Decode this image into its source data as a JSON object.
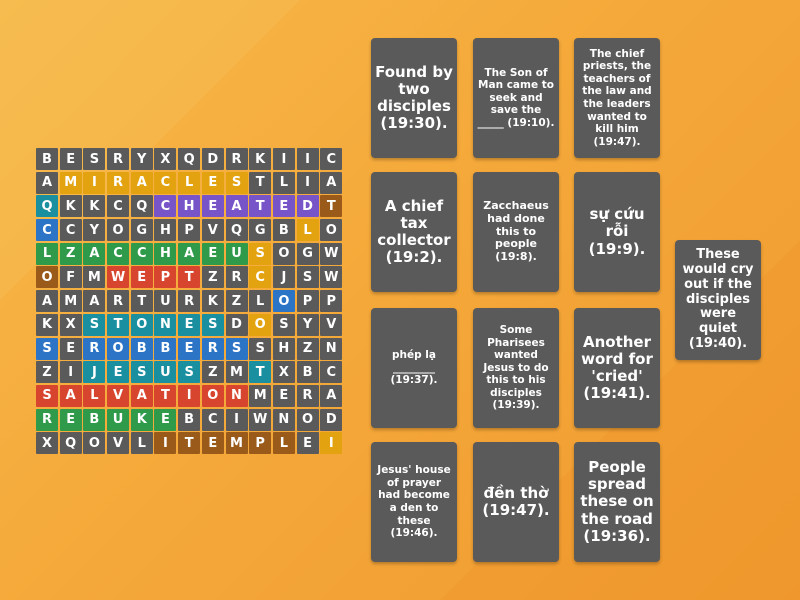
{
  "colors": {
    "background": "#f5a93a",
    "tile": "#5a5a5a",
    "purple": "#7755c8",
    "yellow": "#e3a310",
    "green": "#2e9a4a",
    "red": "#d8452f",
    "brown": "#9a5a1a",
    "teal": "#1a8fa0",
    "blue": "#2b74c6"
  },
  "grid": [
    "BESRYXQDRKIIC",
    "AMIRACLESTLIA",
    "QKKCQCHEATEDT",
    "CCYOGHPVQGBLO",
    "LZACCHAEUSOGW",
    "OFMWEPTZRCJSW",
    "AMARTURKZLOPP",
    "KXSTONESDOSYV",
    "SEROBBERSSHZN",
    "ZIJESUSZMTXBC",
    "SALVATIONMERA",
    "REBUKEBCIWNOD",
    "XQOVLITEMPLEI"
  ],
  "highlights": [
    {
      "word": "MIRACLES",
      "row": 1,
      "cols": [
        1,
        8
      ],
      "color": "yellow"
    },
    {
      "word": "CHEATED",
      "row": 2,
      "cols": [
        5,
        11
      ],
      "color": "purple"
    },
    {
      "word": "T",
      "row": 2,
      "cols": [
        12,
        12
      ],
      "color": "brown"
    },
    {
      "word": "ZACCHAEUS",
      "row": 4,
      "cols": [
        1,
        9
      ],
      "color": "green"
    },
    {
      "word": "WEPT",
      "row": 5,
      "cols": [
        3,
        6
      ],
      "color": "red"
    },
    {
      "word": "STONES",
      "row": 7,
      "cols": [
        2,
        7
      ],
      "color": "teal"
    },
    {
      "word": "ROBBERS",
      "row": 8,
      "cols": [
        2,
        8
      ],
      "color": "blue"
    },
    {
      "word": "JESUS",
      "row": 9,
      "cols": [
        2,
        6
      ],
      "color": "teal"
    },
    {
      "word": "SALVATION",
      "row": 10,
      "cols": [
        0,
        8
      ],
      "color": "red"
    },
    {
      "word": "REBUKE",
      "row": 11,
      "cols": [
        0,
        5
      ],
      "color": "green"
    },
    {
      "word": "TEMPLE",
      "row": 12,
      "cols": [
        5,
        10
      ],
      "color": "brown"
    }
  ],
  "cells_extra": [
    {
      "row": 2,
      "col": 0,
      "color": "teal"
    },
    {
      "row": 3,
      "col": 0,
      "color": "blue"
    },
    {
      "row": 4,
      "col": 0,
      "color": "green"
    },
    {
      "row": 5,
      "col": 0,
      "color": "brown"
    },
    {
      "row": 8,
      "col": 0,
      "color": "blue"
    },
    {
      "row": 3,
      "col": 11,
      "color": "yellow"
    },
    {
      "row": 4,
      "col": 9,
      "color": "yellow"
    },
    {
      "row": 5,
      "col": 9,
      "color": "yellow"
    },
    {
      "row": 6,
      "col": 10,
      "color": "blue"
    },
    {
      "row": 9,
      "col": 9,
      "color": "teal"
    },
    {
      "row": 7,
      "col": 9,
      "color": "yellow"
    },
    {
      "row": 12,
      "col": 12,
      "color": "yellow"
    }
  ],
  "clue_cards": [
    {
      "name": "card-found-by-two-disciples",
      "text": "Found by two disciples (19:30).",
      "size": "lg"
    },
    {
      "name": "card-son-of-man-came",
      "text": "The Son of Man came to seek and save the _____ (19:10).",
      "size": "xs"
    },
    {
      "name": "card-chief-priests",
      "text": "The chief priests, the teachers of the law and the leaders wanted to kill him (19:47).",
      "size": "xs"
    },
    {
      "name": "card-chief-tax-collector",
      "text": "A chief tax collector (19:2).",
      "size": "lg"
    },
    {
      "name": "card-zacchaeus-had-done",
      "text": "Zacchaeus had done this to people (19:8).",
      "size": "sm"
    },
    {
      "name": "card-su-cuu-roi",
      "text": "sự cứu rỗi (19:9).",
      "size": "lg"
    },
    {
      "name": "card-phep-la",
      "text": "phép lạ ________ (19:37).",
      "size": "xs"
    },
    {
      "name": "card-some-pharisees",
      "text": "Some Pharisees wanted Jesus to do this to his disciples (19:39).",
      "size": "xs"
    },
    {
      "name": "card-another-word-cried",
      "text": "Another word for 'cried' (19:41).",
      "size": "lg"
    },
    {
      "name": "card-jesus-house-of-prayer",
      "text": "Jesus' house of prayer had become a den to these (19:46).",
      "size": "xs"
    },
    {
      "name": "card-den-tho",
      "text": "đền thờ (19:47).",
      "size": "lg"
    },
    {
      "name": "card-people-spread",
      "text": "People spread these on the road (19:36).",
      "size": "lg"
    },
    {
      "name": "card-would-cry-out",
      "text": "These would cry out if the disciples were quiet (19:40).",
      "size": "md"
    }
  ]
}
